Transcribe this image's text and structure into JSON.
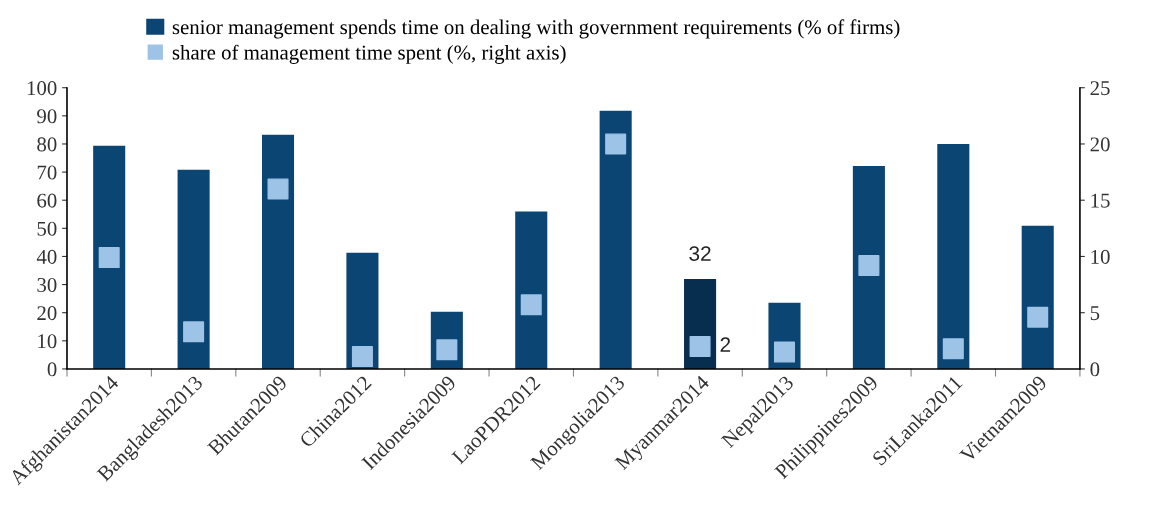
{
  "chart_data": {
    "type": "bar",
    "categories": [
      "Afghanistan2014",
      "Bangladesh2013",
      "Bhutan2009",
      "China2012",
      "Indonesia2009",
      "LaoPDR2012",
      "Mongolia2013",
      "Myanmar2014",
      "Nepal2013",
      "Philippines2009",
      "SriLanka2011",
      "Vietnam2009"
    ],
    "series": [
      {
        "name": "senior management spends time on dealing with government requirements (% of firms)",
        "color": "#0b4574",
        "colors": [
          "#0b4574",
          "#0b4574",
          "#0b4574",
          "#0b4574",
          "#0b4574",
          "#0b4574",
          "#0b4574",
          "#072d4f",
          "#0b4574",
          "#0b4574",
          "#0b4574",
          "#0b4574"
        ],
        "values": [
          79.4,
          70.8,
          83.3,
          41.3,
          20.3,
          56,
          91.8,
          32,
          23.5,
          72.2,
          80,
          50.9
        ],
        "value_labels": [
          null,
          null,
          null,
          null,
          null,
          null,
          null,
          "32",
          null,
          null,
          null,
          null
        ]
      },
      {
        "name": "share of management time spent (%, right axis)",
        "type": "scatter",
        "axis": "y2",
        "marker": "square",
        "color": "#9dc3e6",
        "values": [
          9.9,
          3.3,
          16,
          1.1,
          1.7,
          5.7,
          20,
          2,
          1.5,
          9.2,
          1.8,
          4.6
        ],
        "value_labels": [
          null,
          null,
          null,
          null,
          null,
          null,
          null,
          "2",
          null,
          null,
          null,
          null
        ]
      }
    ],
    "ylim": [
      0,
      100
    ],
    "yticks": [
      0,
      10,
      20,
      30,
      40,
      50,
      60,
      70,
      80,
      90,
      100
    ],
    "y2lim": [
      0,
      25
    ],
    "y2ticks": [
      0,
      5,
      10,
      15,
      20,
      25
    ],
    "grid": false,
    "legend": "top left"
  }
}
